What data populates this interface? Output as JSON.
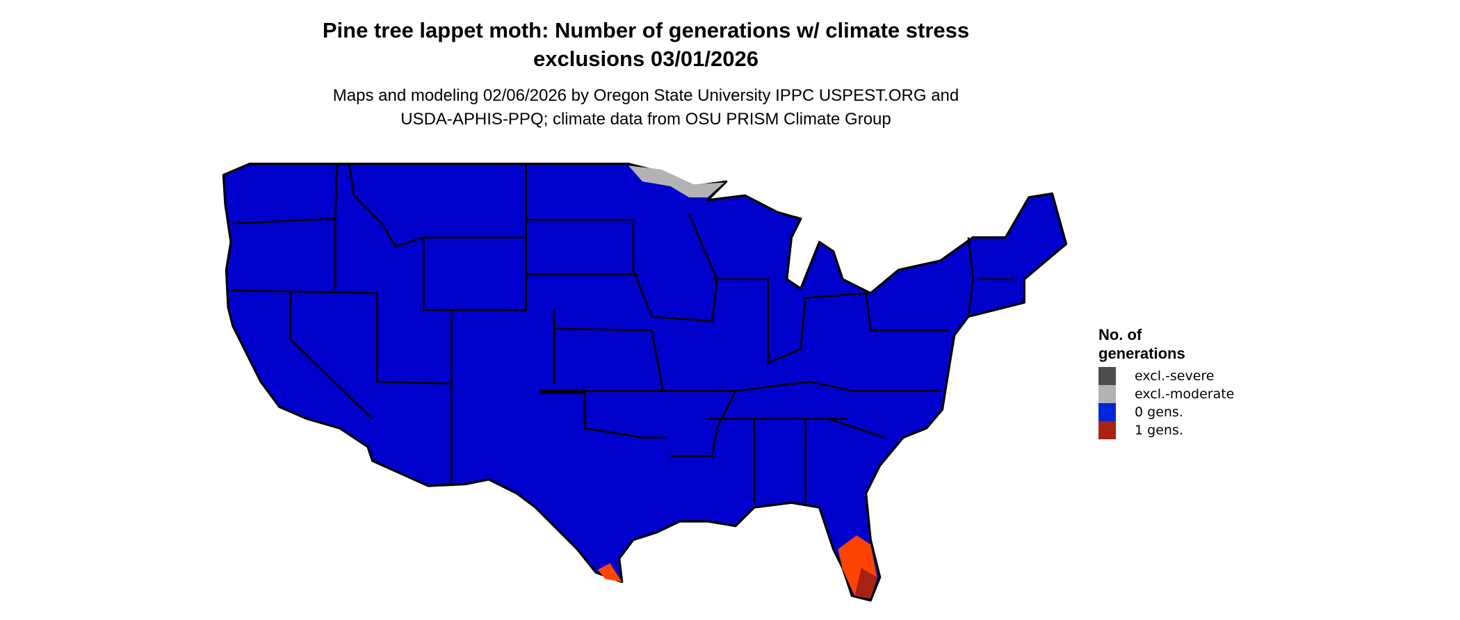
{
  "title": {
    "line1": "Pine tree lappet moth: Number of generations w/ climate stress",
    "line2": "exclusions 03/01/2026"
  },
  "subtitle": {
    "line1": "Maps and modeling 02/06/2026 by Oregon State University IPPC USPEST.ORG and",
    "line2": "USDA-APHIS-PPQ; climate data from OSU PRISM Climate Group"
  },
  "legend": {
    "title_line1": "No. of",
    "title_line2": "generations",
    "items": [
      {
        "label": "excl.-severe",
        "color": "#4d4d4d"
      },
      {
        "label": "excl.-moderate",
        "color": "#b3b3b3"
      },
      {
        "label": "0 gens.",
        "color": "#0026d9"
      },
      {
        "label": "1 gens.",
        "color": "#a82214"
      }
    ]
  },
  "map_colors": {
    "zero_gens": "#0000cc",
    "one_gen_light": "#ff4400",
    "one_gen_dark": "#a82214",
    "excl_moderate": "#b3b3b3",
    "border": "#000000"
  }
}
